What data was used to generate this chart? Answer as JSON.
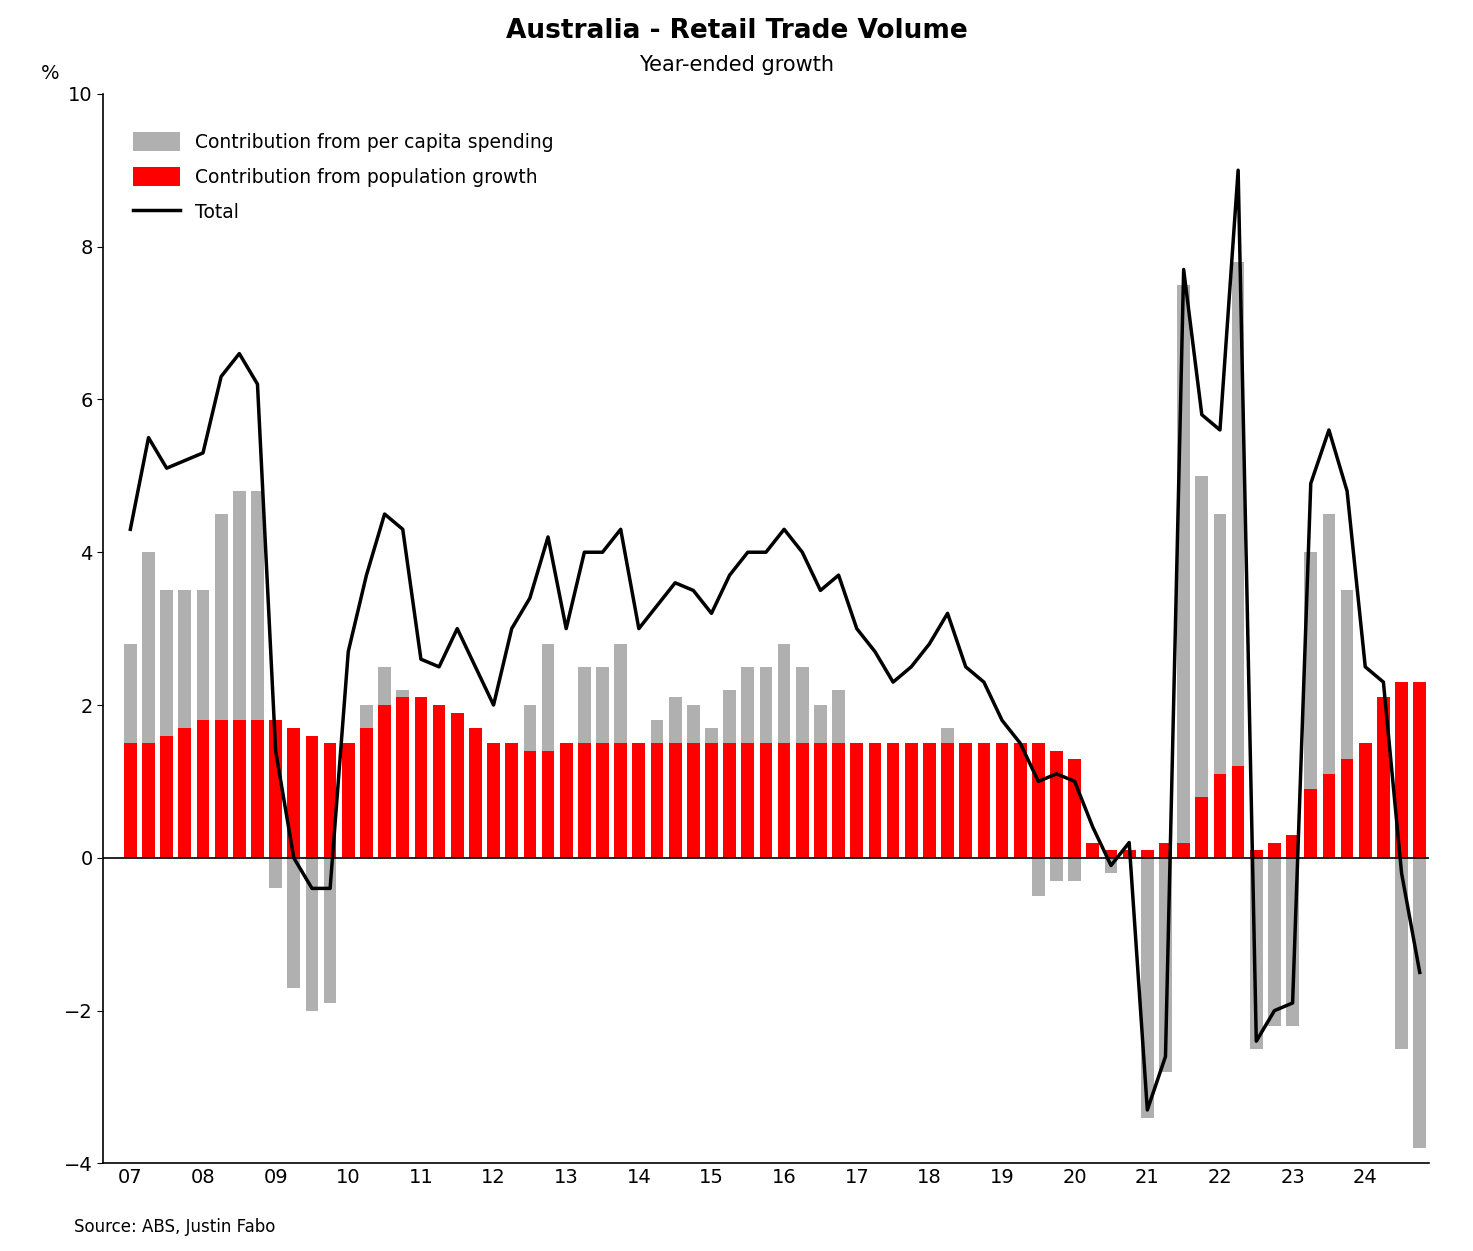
{
  "title": "Australia - Retail Trade Volume",
  "subtitle": "Year-ended growth",
  "ylabel": "%",
  "source": "Source: ABS, Justin Fabo",
  "ylim": [
    -4,
    10
  ],
  "yticks": [
    -4,
    -2,
    0,
    2,
    4,
    6,
    8,
    10
  ],
  "background_color": "#ffffff",
  "bar_color_percapita": "#b0b0b0",
  "bar_color_population": "#ff0000",
  "line_color": "#000000",
  "x_year_labels": [
    "07",
    "08",
    "09",
    "10",
    "11",
    "12",
    "13",
    "14",
    "15",
    "16",
    "17",
    "18",
    "19",
    "20",
    "21",
    "22",
    "23",
    "24"
  ],
  "percapita": [
    2.8,
    4.0,
    3.5,
    3.5,
    3.5,
    4.5,
    4.8,
    4.8,
    -0.4,
    -1.7,
    -2.0,
    -1.9,
    1.2,
    2.0,
    2.5,
    2.2,
    0.5,
    0.5,
    1.1,
    0.8,
    0.5,
    1.5,
    2.0,
    2.8,
    1.5,
    2.5,
    2.5,
    2.8,
    1.5,
    1.8,
    2.1,
    2.0,
    1.7,
    2.2,
    2.5,
    2.5,
    2.8,
    2.5,
    2.0,
    2.2,
    1.5,
    1.2,
    0.8,
    1.0,
    1.3,
    1.7,
    1.0,
    0.8,
    0.3,
    0.0,
    -0.5,
    -0.3,
    -0.3,
    0.2,
    -0.2,
    0.1,
    -3.4,
    -2.8,
    7.5,
    5.0,
    4.5,
    7.8,
    -2.5,
    -2.2,
    -2.2,
    4.0,
    4.5,
    3.5,
    1.0,
    0.2,
    -2.5,
    -3.8
  ],
  "population": [
    1.5,
    1.5,
    1.6,
    1.7,
    1.8,
    1.8,
    1.8,
    1.8,
    1.8,
    1.7,
    1.6,
    1.5,
    1.5,
    1.7,
    2.0,
    2.1,
    2.1,
    2.0,
    1.9,
    1.7,
    1.5,
    1.5,
    1.4,
    1.4,
    1.5,
    1.5,
    1.5,
    1.5,
    1.5,
    1.5,
    1.5,
    1.5,
    1.5,
    1.5,
    1.5,
    1.5,
    1.5,
    1.5,
    1.5,
    1.5,
    1.5,
    1.5,
    1.5,
    1.5,
    1.5,
    1.5,
    1.5,
    1.5,
    1.5,
    1.5,
    1.5,
    1.4,
    1.3,
    0.2,
    0.1,
    0.1,
    0.1,
    0.2,
    0.2,
    0.8,
    1.1,
    1.2,
    0.1,
    0.2,
    0.3,
    0.9,
    1.1,
    1.3,
    1.5,
    2.1,
    2.3,
    2.3
  ],
  "total": [
    4.3,
    5.5,
    5.1,
    5.2,
    5.3,
    6.3,
    6.6,
    6.2,
    1.4,
    0.0,
    -0.4,
    -0.4,
    2.7,
    3.7,
    4.5,
    4.3,
    2.6,
    2.5,
    3.0,
    2.5,
    2.0,
    3.0,
    3.4,
    4.2,
    3.0,
    4.0,
    4.0,
    4.3,
    3.0,
    3.3,
    3.6,
    3.5,
    3.2,
    3.7,
    4.0,
    4.0,
    4.3,
    4.0,
    3.5,
    3.7,
    3.0,
    2.7,
    2.3,
    2.5,
    2.8,
    3.2,
    2.5,
    2.3,
    1.8,
    1.5,
    1.0,
    1.1,
    1.0,
    0.4,
    -0.1,
    0.2,
    -3.3,
    -2.6,
    7.7,
    5.8,
    5.6,
    9.0,
    -2.4,
    -2.0,
    -1.9,
    4.9,
    5.6,
    4.8,
    2.5,
    2.3,
    -0.2,
    -1.5
  ]
}
